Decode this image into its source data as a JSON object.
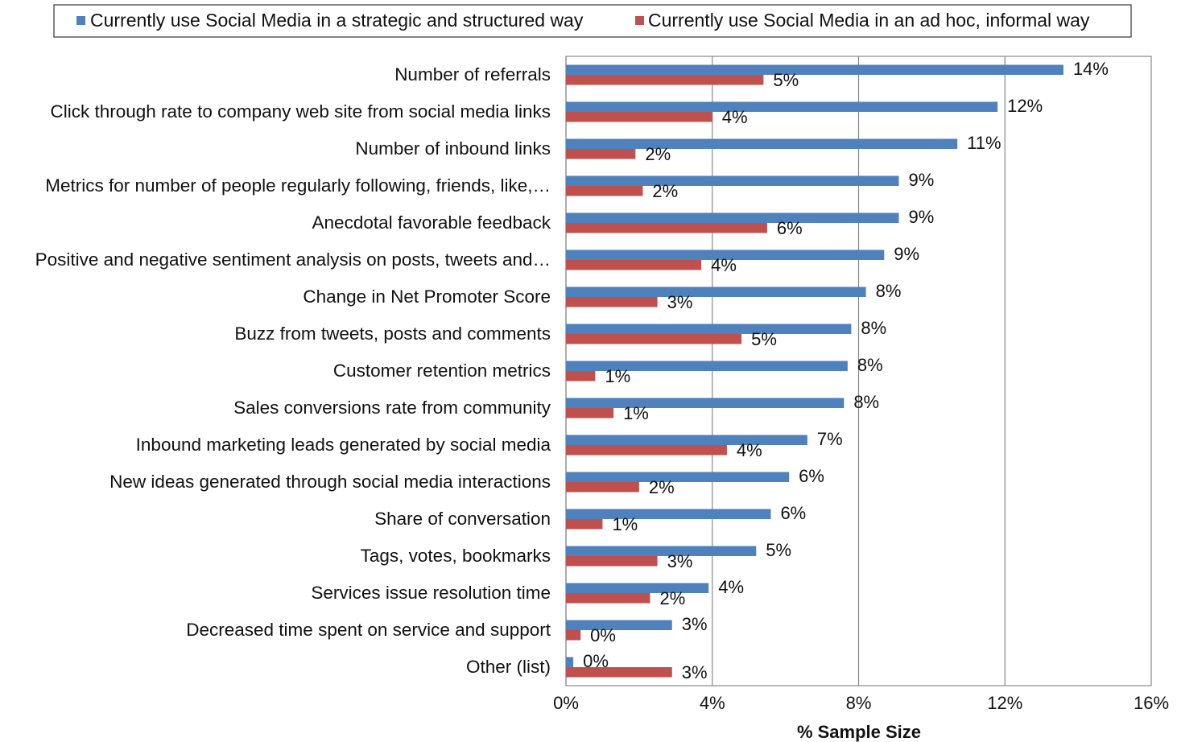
{
  "chart_data": {
    "type": "bar",
    "orientation": "horizontal",
    "categories": [
      "Number of referrals",
      "Click through rate to company web site from social media links",
      "Number of inbound links",
      "Metrics for number of people regularly following, friends, like,…",
      "Anecdotal favorable feedback",
      "Positive and negative sentiment analysis on posts, tweets and…",
      "Change in Net Promoter Score",
      "Buzz from tweets, posts and comments",
      "Customer retention metrics",
      "Sales conversions rate from community",
      "Inbound marketing leads generated by social media",
      "New ideas generated through social media interactions",
      "Share of conversation",
      "Tags, votes, bookmarks",
      "Services issue resolution time",
      "Decreased time spent on service and support",
      "Other (list)"
    ],
    "series": [
      {
        "name": "Currently use Social Media in a strategic and structured way",
        "color": "#4F81BD",
        "values": [
          13.6,
          11.8,
          10.7,
          9.1,
          9.1,
          8.7,
          8.2,
          7.8,
          7.7,
          7.6,
          6.6,
          6.1,
          5.6,
          5.2,
          3.9,
          2.9,
          0.2
        ],
        "labels": [
          "14%",
          "12%",
          "11%",
          "9%",
          "9%",
          "9%",
          "8%",
          "8%",
          "8%",
          "8%",
          "7%",
          "6%",
          "6%",
          "5%",
          "4%",
          "3%",
          "0%"
        ]
      },
      {
        "name": "Currently use Social Media in an ad hoc, informal way",
        "color": "#C0504D",
        "values": [
          5.4,
          4.0,
          1.9,
          2.1,
          5.5,
          3.7,
          2.5,
          4.8,
          0.8,
          1.3,
          4.4,
          2.0,
          1.0,
          2.5,
          2.3,
          0.4,
          2.9
        ],
        "labels": [
          "5%",
          "4%",
          "2%",
          "2%",
          "6%",
          "4%",
          "3%",
          "5%",
          "1%",
          "1%",
          "4%",
          "2%",
          "1%",
          "3%",
          "2%",
          "0%",
          "3%"
        ]
      }
    ],
    "xlim": [
      0,
      16
    ],
    "xticks": [
      0,
      4,
      8,
      12,
      16
    ],
    "xtick_labels": [
      "0%",
      "4%",
      "8%",
      "12%",
      "16%"
    ],
    "xlabel": "% Sample Size",
    "ylabel": "",
    "grid": "vertical",
    "legend_position": "top"
  }
}
